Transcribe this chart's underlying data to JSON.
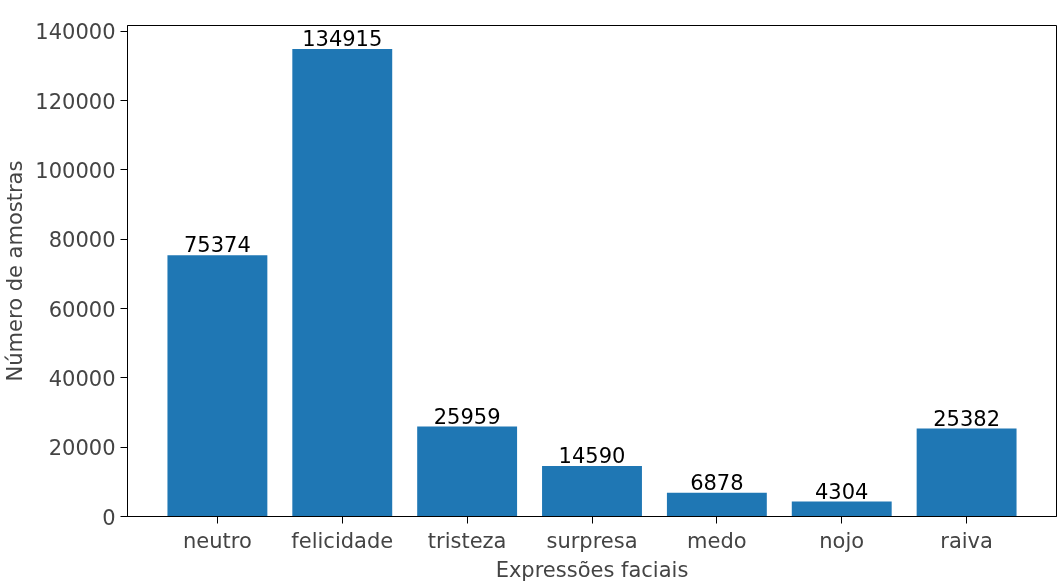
{
  "chart_data": {
    "type": "bar",
    "xlabel": "Expressões faciais",
    "ylabel": "Número de amostras",
    "categories": [
      "neutro",
      "felicidade",
      "tristeza",
      "surpresa",
      "medo",
      "nojo",
      "raiva"
    ],
    "values": [
      75374,
      134915,
      25959,
      14590,
      6878,
      4304,
      25382
    ],
    "color": "#1f77b4",
    "data_labels": true,
    "ylim": [
      0,
      141660
    ],
    "yticks": [
      0,
      20000,
      40000,
      60000,
      80000,
      100000,
      120000,
      140000
    ],
    "grid": false
  }
}
